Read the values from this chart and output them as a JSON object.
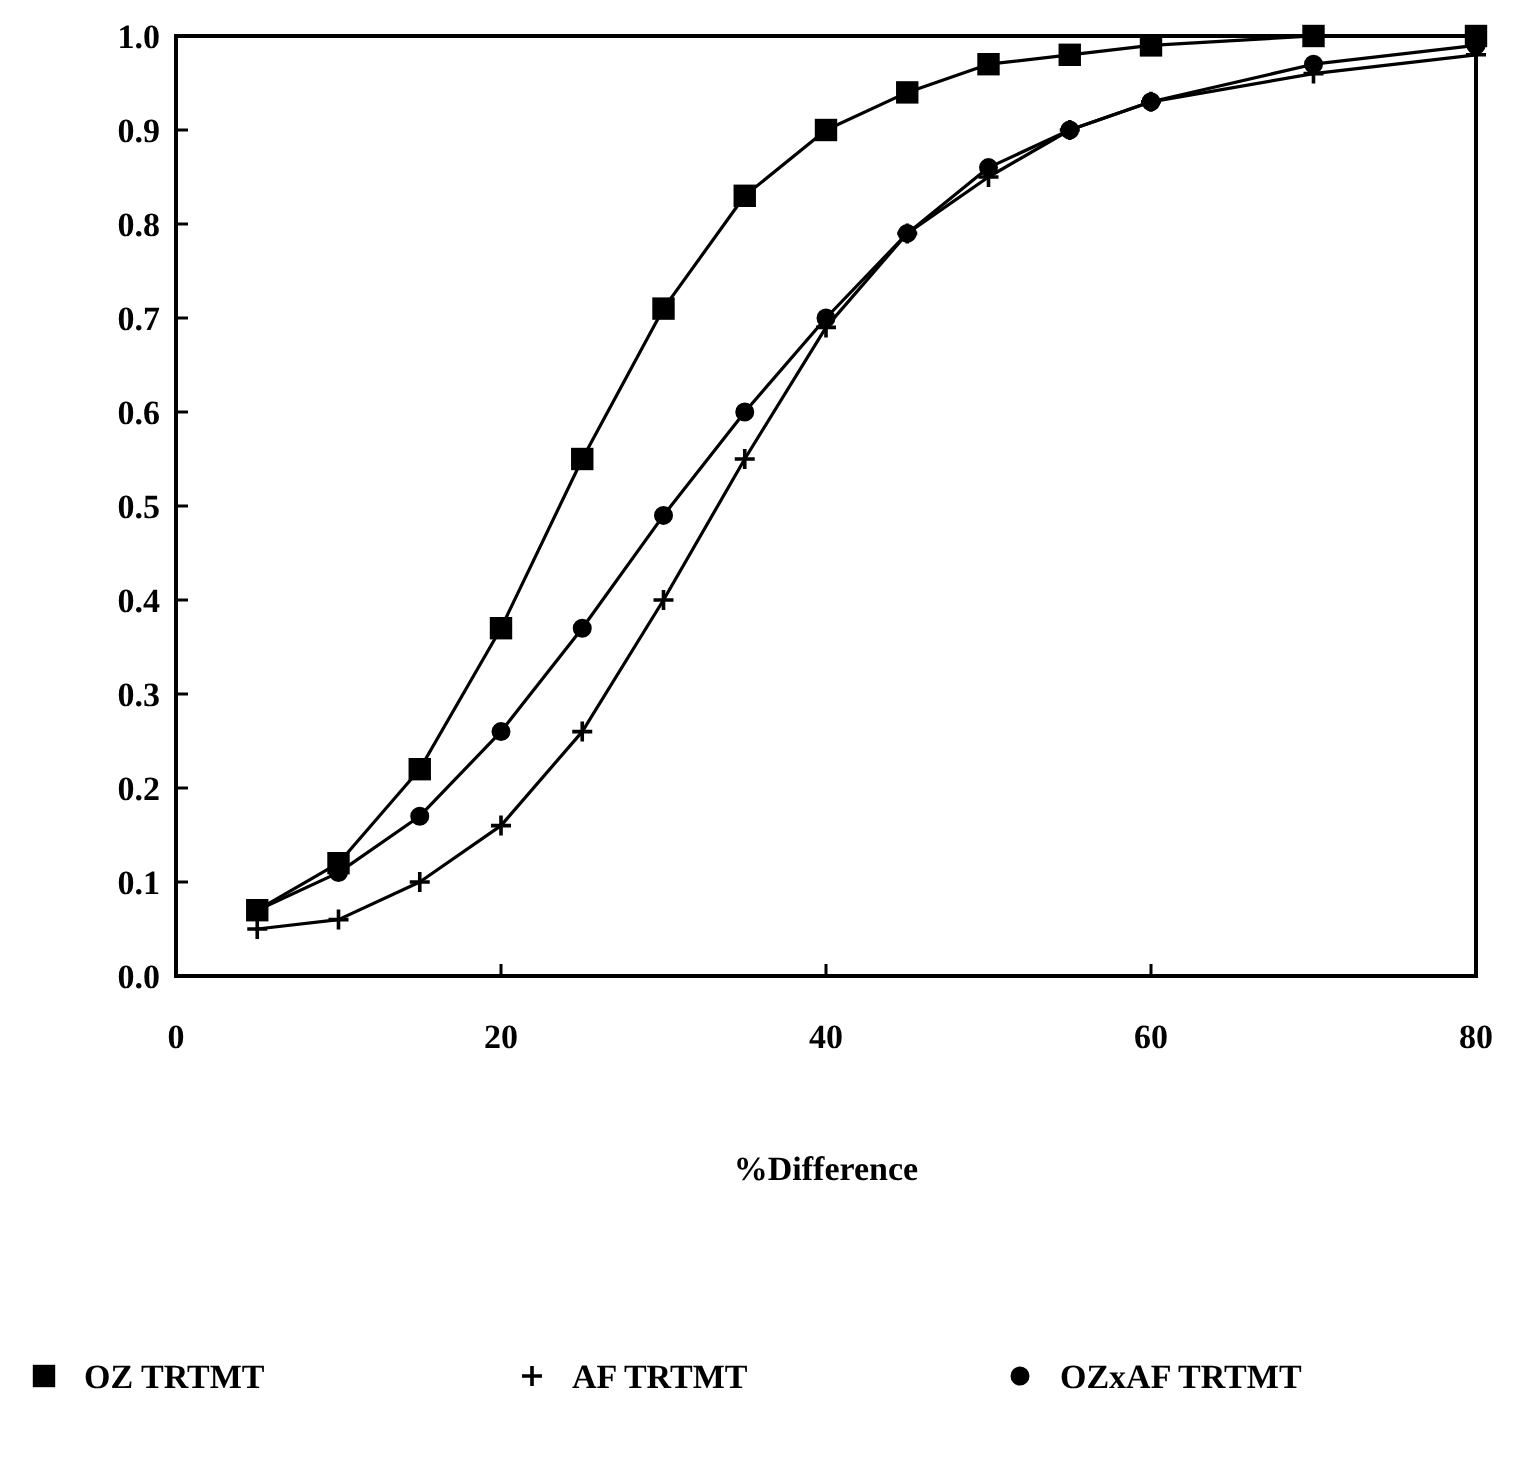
{
  "chart_data": {
    "type": "line",
    "xlabel": "%Difference",
    "xlim": [
      0,
      80
    ],
    "xticks": [
      0,
      20,
      40,
      60,
      80
    ],
    "ylim": [
      0,
      1
    ],
    "yticks": [
      {
        "value": 0,
        "label": "0.0"
      },
      {
        "value": 0.1,
        "label": "0.1"
      },
      {
        "value": 0.2,
        "label": "0.2"
      },
      {
        "value": 0.3,
        "label": "0.3"
      },
      {
        "value": 0.4,
        "label": "0.4"
      },
      {
        "value": 0.5,
        "label": "0.5"
      },
      {
        "value": 0.6,
        "label": "0.6"
      },
      {
        "value": 0.7,
        "label": "0.7"
      },
      {
        "value": 0.8,
        "label": "0.8"
      },
      {
        "value": 0.9,
        "label": "0.9"
      },
      {
        "value": 1,
        "label": "1.0"
      }
    ],
    "x": [
      5,
      10,
      15,
      20,
      25,
      30,
      35,
      40,
      45,
      50,
      55,
      60,
      70,
      80
    ],
    "grid": false,
    "legend": "bottom",
    "series": [
      {
        "name": "OZ TRTMT",
        "color": "#000000",
        "marker": "square",
        "values": [
          0.07,
          0.12,
          0.22,
          0.37,
          0.55,
          0.71,
          0.83,
          0.9,
          0.94,
          0.97,
          0.98,
          0.99,
          1.0,
          1.0
        ]
      },
      {
        "name": "AF TRTMT",
        "color": "#000000",
        "marker": "cross",
        "values": [
          0.05,
          0.06,
          0.1,
          0.16,
          0.26,
          0.4,
          0.55,
          0.69,
          0.79,
          0.85,
          0.9,
          0.93,
          0.96,
          0.98
        ]
      },
      {
        "name": "OZxAF TRTMT",
        "color": "#000000",
        "marker": "circle",
        "values": [
          0.07,
          0.11,
          0.17,
          0.26,
          0.37,
          0.49,
          0.6,
          0.7,
          0.79,
          0.86,
          0.9,
          0.93,
          0.97,
          0.99
        ]
      }
    ]
  }
}
